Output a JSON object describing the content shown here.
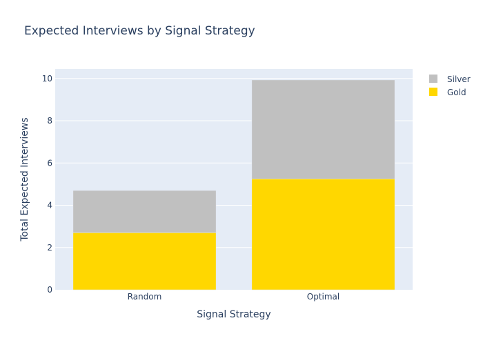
{
  "chart_data": {
    "type": "bar",
    "barmode": "stack",
    "title": "Expected Interviews by Signal Strategy",
    "xlabel": "Signal Strategy",
    "ylabel": "Total Expected Interviews",
    "categories": [
      "Random",
      "Optimal"
    ],
    "series": [
      {
        "name": "Gold",
        "values": [
          2.7,
          5.25
        ],
        "color": "#FFD700"
      },
      {
        "name": "Silver",
        "values": [
          2.0,
          4.68
        ],
        "color": "#C0C0C0"
      }
    ],
    "ylim": [
      0,
      10.45
    ],
    "yticks": [
      0,
      2,
      4,
      6,
      8,
      10
    ],
    "grid": true,
    "legend": {
      "position": "top-right",
      "order": [
        "Silver",
        "Gold"
      ]
    },
    "colors": {
      "plot_background": "#E5ECF6",
      "text": "#2a3f5f",
      "grid": "#ffffff"
    }
  }
}
